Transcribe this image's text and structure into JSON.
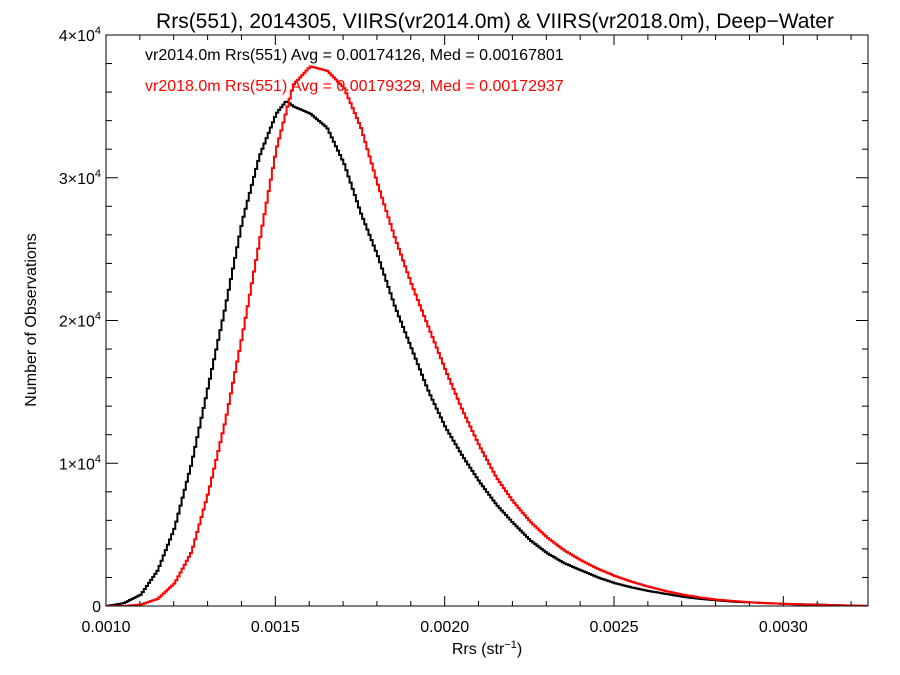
{
  "chart_data": {
    "type": "line",
    "title": "Rrs(551), 2014305, VIIRS(vr2014.0m) & VIIRS(vr2018.0m), Deep−Water",
    "xlabel": "Rrs (str",
    "xlabel_sup": "−1",
    "xlabel_end": ")",
    "ylabel": "Number of Observations",
    "xlim": [
      0.001,
      0.00325
    ],
    "ylim": [
      0,
      40000
    ],
    "x_ticks": [
      {
        "value": 0.001,
        "label": "0.0010"
      },
      {
        "value": 0.0015,
        "label": "0.0015"
      },
      {
        "value": 0.002,
        "label": "0.0020"
      },
      {
        "value": 0.0025,
        "label": "0.0025"
      },
      {
        "value": 0.003,
        "label": "0.0030"
      }
    ],
    "y_ticks": [
      {
        "value": 0,
        "mant": "0",
        "exp": ""
      },
      {
        "value": 10000,
        "mant": "1×10",
        "exp": "4"
      },
      {
        "value": 20000,
        "mant": "2×10",
        "exp": "4"
      },
      {
        "value": 30000,
        "mant": "3×10",
        "exp": "4"
      },
      {
        "value": 40000,
        "mant": "4×10",
        "exp": "4"
      }
    ],
    "grid": false,
    "legend": [
      {
        "text": "vr2014.0m Rrs(551) Avg = 0.00174126, Med = 0.00167801",
        "color": "#000000"
      },
      {
        "text": "vr2018.0m Rrs(551) Avg = 0.00179329, Med = 0.00172937",
        "color": "#ff0000"
      }
    ],
    "series": [
      {
        "color": "#000000",
        "x": [
          0.001,
          0.00105,
          0.0011,
          0.00115,
          0.0012,
          0.00125,
          0.0013,
          0.00135,
          0.0014,
          0.00145,
          0.0015,
          0.00153,
          0.00155,
          0.0016,
          0.00165,
          0.0017,
          0.00175,
          0.0018,
          0.00185,
          0.0019,
          0.00195,
          0.002,
          0.00205,
          0.0021,
          0.00215,
          0.0022,
          0.00225,
          0.0023,
          0.00235,
          0.0024,
          0.00245,
          0.0025,
          0.00255,
          0.0026,
          0.00265,
          0.0027,
          0.00275,
          0.0028,
          0.00285,
          0.0029,
          0.00295,
          0.003,
          0.00305,
          0.0031,
          0.00315,
          0.0032,
          0.00325
        ],
        "y": [
          0,
          200,
          800,
          2500,
          5500,
          10000,
          15500,
          21000,
          27000,
          31500,
          34500,
          35400,
          35000,
          34500,
          33500,
          31000,
          27500,
          24500,
          21000,
          18000,
          15000,
          12500,
          10500,
          8700,
          7100,
          5800,
          4600,
          3700,
          3000,
          2500,
          2000,
          1600,
          1300,
          1050,
          850,
          650,
          500,
          400,
          300,
          250,
          200,
          150,
          120,
          100,
          60,
          30,
          0
        ]
      },
      {
        "color": "#ff0000",
        "x": [
          0.001,
          0.00105,
          0.0011,
          0.00115,
          0.0012,
          0.00125,
          0.0013,
          0.00135,
          0.0014,
          0.00145,
          0.0015,
          0.00155,
          0.0016,
          0.00165,
          0.0017,
          0.00175,
          0.0018,
          0.00185,
          0.0019,
          0.00195,
          0.002,
          0.00205,
          0.0021,
          0.00215,
          0.0022,
          0.00225,
          0.0023,
          0.00235,
          0.0024,
          0.00245,
          0.0025,
          0.00255,
          0.0026,
          0.00265,
          0.0027,
          0.00275,
          0.0028,
          0.00285,
          0.0029,
          0.00295,
          0.003,
          0.00305,
          0.0031,
          0.00315,
          0.0032,
          0.00325
        ],
        "y": [
          0,
          0,
          100,
          500,
          1600,
          3800,
          8000,
          13000,
          19000,
          25500,
          32000,
          36500,
          37800,
          37500,
          36300,
          33500,
          29500,
          25800,
          22500,
          19500,
          16500,
          13700,
          11200,
          9000,
          7300,
          5900,
          4800,
          3900,
          3200,
          2600,
          2100,
          1700,
          1350,
          1050,
          800,
          600,
          450,
          350,
          260,
          200,
          150,
          110,
          80,
          50,
          30,
          0
        ]
      }
    ]
  }
}
